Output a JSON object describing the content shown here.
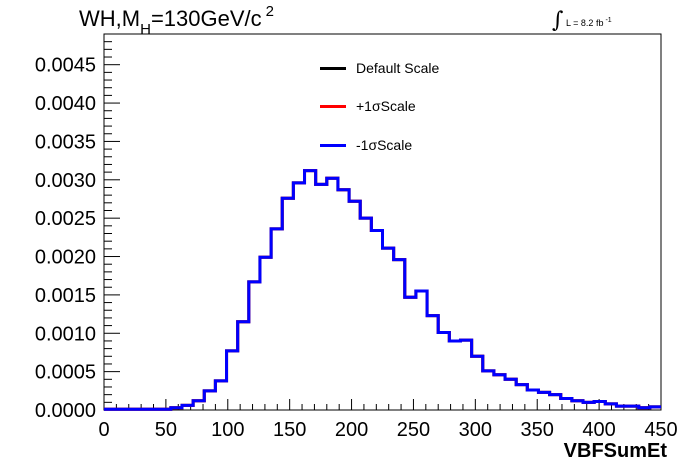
{
  "title": {
    "main": "WH,M",
    "sub": "H",
    "rest": "=130GeV/c",
    "sup": "2"
  },
  "lumi": {
    "text": "L = 8.2 fb",
    "sup": "-1"
  },
  "colors": {
    "default": "#000000",
    "plus": "#ff0000",
    "minus": "#0000ff"
  },
  "chart_data": {
    "type": "line",
    "step": true,
    "xlabel": "VBFSumEt",
    "ylabel": "",
    "xlim": [
      0,
      450
    ],
    "ylim": [
      0,
      0.0049
    ],
    "x_ticks": [
      "0",
      "50",
      "100",
      "150",
      "200",
      "250",
      "300",
      "350",
      "400",
      "450"
    ],
    "y_ticks": [
      "0.0000",
      "0.0005",
      "0.0010",
      "0.0015",
      "0.0020",
      "0.0025",
      "0.0030",
      "0.0035",
      "0.0040",
      "0.0045"
    ],
    "bin_edges": [
      0,
      9,
      18,
      27,
      36,
      45,
      54,
      63,
      72,
      81,
      90,
      99,
      108,
      117,
      126,
      135,
      144,
      153,
      162,
      171,
      180,
      189,
      198,
      207,
      216,
      225,
      234,
      243,
      252,
      261,
      270,
      279,
      288,
      297,
      306,
      315,
      324,
      333,
      342,
      351,
      360,
      369,
      378,
      387,
      396,
      405,
      414,
      423,
      432,
      441,
      450
    ],
    "series": [
      {
        "name": "Default Scale",
        "color": "#000000",
        "values": [
          1e-05,
          1e-05,
          1e-05,
          1e-05,
          1e-05,
          1e-05,
          3e-05,
          6e-05,
          0.00012,
          0.00025,
          0.00038,
          0.00077,
          0.00115,
          0.00167,
          0.00199,
          0.00236,
          0.00276,
          0.00296,
          0.00312,
          0.00294,
          0.00302,
          0.00287,
          0.00272,
          0.0025,
          0.00234,
          0.00211,
          0.00196,
          0.00147,
          0.00155,
          0.00123,
          0.00101,
          0.0009,
          0.00091,
          0.0007,
          0.00051,
          0.00046,
          0.0004,
          0.00033,
          0.00026,
          0.00023,
          0.0002,
          0.00015,
          0.00012,
          0.0001,
          0.00011,
          8e-05,
          5e-05,
          5e-05,
          3e-05,
          4e-05
        ]
      },
      {
        "name": "+1σScale",
        "color": "#ff0000",
        "values": [
          1e-05,
          1e-05,
          1e-05,
          1e-05,
          1e-05,
          1e-05,
          3e-05,
          6e-05,
          0.00012,
          0.00025,
          0.00038,
          0.00077,
          0.00115,
          0.00167,
          0.00199,
          0.00236,
          0.00276,
          0.00296,
          0.00312,
          0.00294,
          0.00302,
          0.00287,
          0.00272,
          0.0025,
          0.00234,
          0.00211,
          0.00196,
          0.00147,
          0.00155,
          0.00123,
          0.00101,
          0.0009,
          0.00091,
          0.0007,
          0.00051,
          0.00046,
          0.0004,
          0.00033,
          0.00026,
          0.00023,
          0.0002,
          0.00015,
          0.00012,
          0.0001,
          0.00011,
          8e-05,
          5e-05,
          5e-05,
          3e-05,
          4e-05
        ]
      },
      {
        "name": "-1σScale",
        "color": "#0000ff",
        "values": [
          1e-05,
          1e-05,
          1e-05,
          1e-05,
          1e-05,
          1e-05,
          3e-05,
          6e-05,
          0.00012,
          0.00025,
          0.00038,
          0.00077,
          0.00115,
          0.00167,
          0.00199,
          0.00236,
          0.00276,
          0.00296,
          0.00312,
          0.00294,
          0.00302,
          0.00287,
          0.00272,
          0.0025,
          0.00234,
          0.00211,
          0.00196,
          0.00147,
          0.00155,
          0.00123,
          0.00101,
          0.0009,
          0.00091,
          0.0007,
          0.00051,
          0.00046,
          0.0004,
          0.00033,
          0.00026,
          0.00023,
          0.0002,
          0.00015,
          0.00012,
          0.0001,
          0.00011,
          8e-05,
          5e-05,
          5e-05,
          3e-05,
          4e-05
        ]
      }
    ],
    "legend": [
      "Default Scale",
      "+1σScale",
      "-1σScale"
    ],
    "legend_position": "top-center",
    "grid": false
  }
}
